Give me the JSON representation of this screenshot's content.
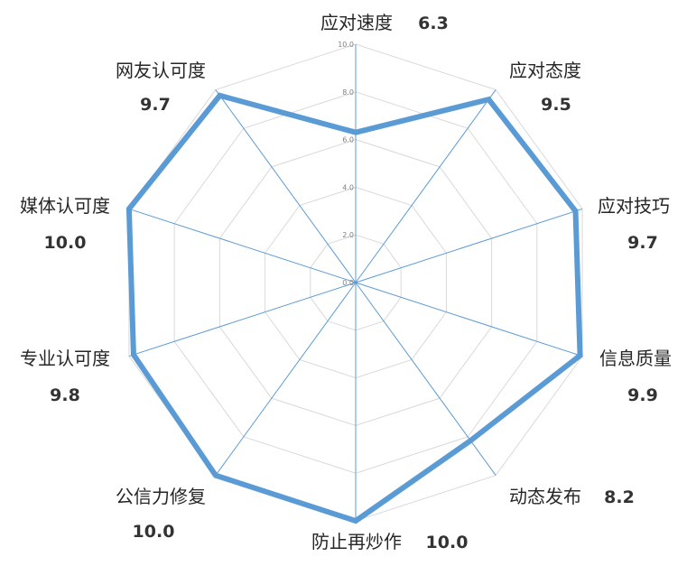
{
  "chart_data": {
    "type": "radar",
    "categories": [
      "应对速度",
      "应对态度",
      "应对技巧",
      "信息质量",
      "动态发布",
      "防止再炒作",
      "公信力修复",
      "专业认可度",
      "媒体认可度",
      "网友认可度"
    ],
    "values": [
      6.3,
      9.5,
      9.7,
      9.9,
      8.2,
      10.0,
      10.0,
      9.8,
      10.0,
      9.7
    ],
    "value_labels": [
      "6.3",
      "9.5",
      "9.7",
      "9.9",
      "8.2",
      "10.0",
      "10.0",
      "9.8",
      "10.0",
      "9.7"
    ],
    "ticks": [
      "0.0",
      "2.0",
      "4.0",
      "6.0",
      "8.0",
      "10.0"
    ],
    "range": [
      0,
      10
    ],
    "grid": true,
    "colors": {
      "series": "#5B9BD5",
      "axis": "#5B9BD5",
      "grid": "#D9D9D9"
    }
  }
}
